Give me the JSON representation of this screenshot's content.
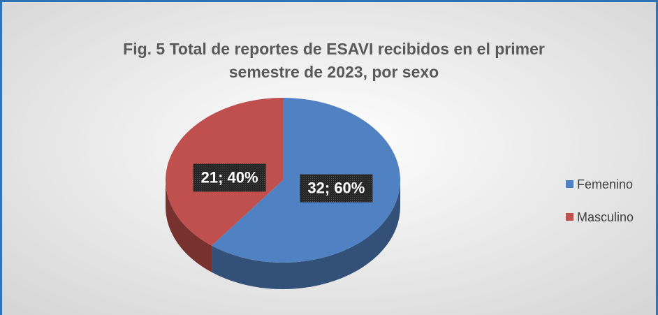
{
  "chart_data": {
    "type": "pie3d",
    "title": "Fig. 5 Total de reportes de ESAVI recibidos en el primer semestre de 2023, por sexo",
    "categories": [
      "Femenino",
      "Masculino"
    ],
    "values": [
      32,
      21
    ],
    "value_labels": [
      "32; 60%",
      "21; 40%"
    ],
    "colors": [
      "#5081c2",
      "#c0504d"
    ],
    "legend": "right"
  }
}
